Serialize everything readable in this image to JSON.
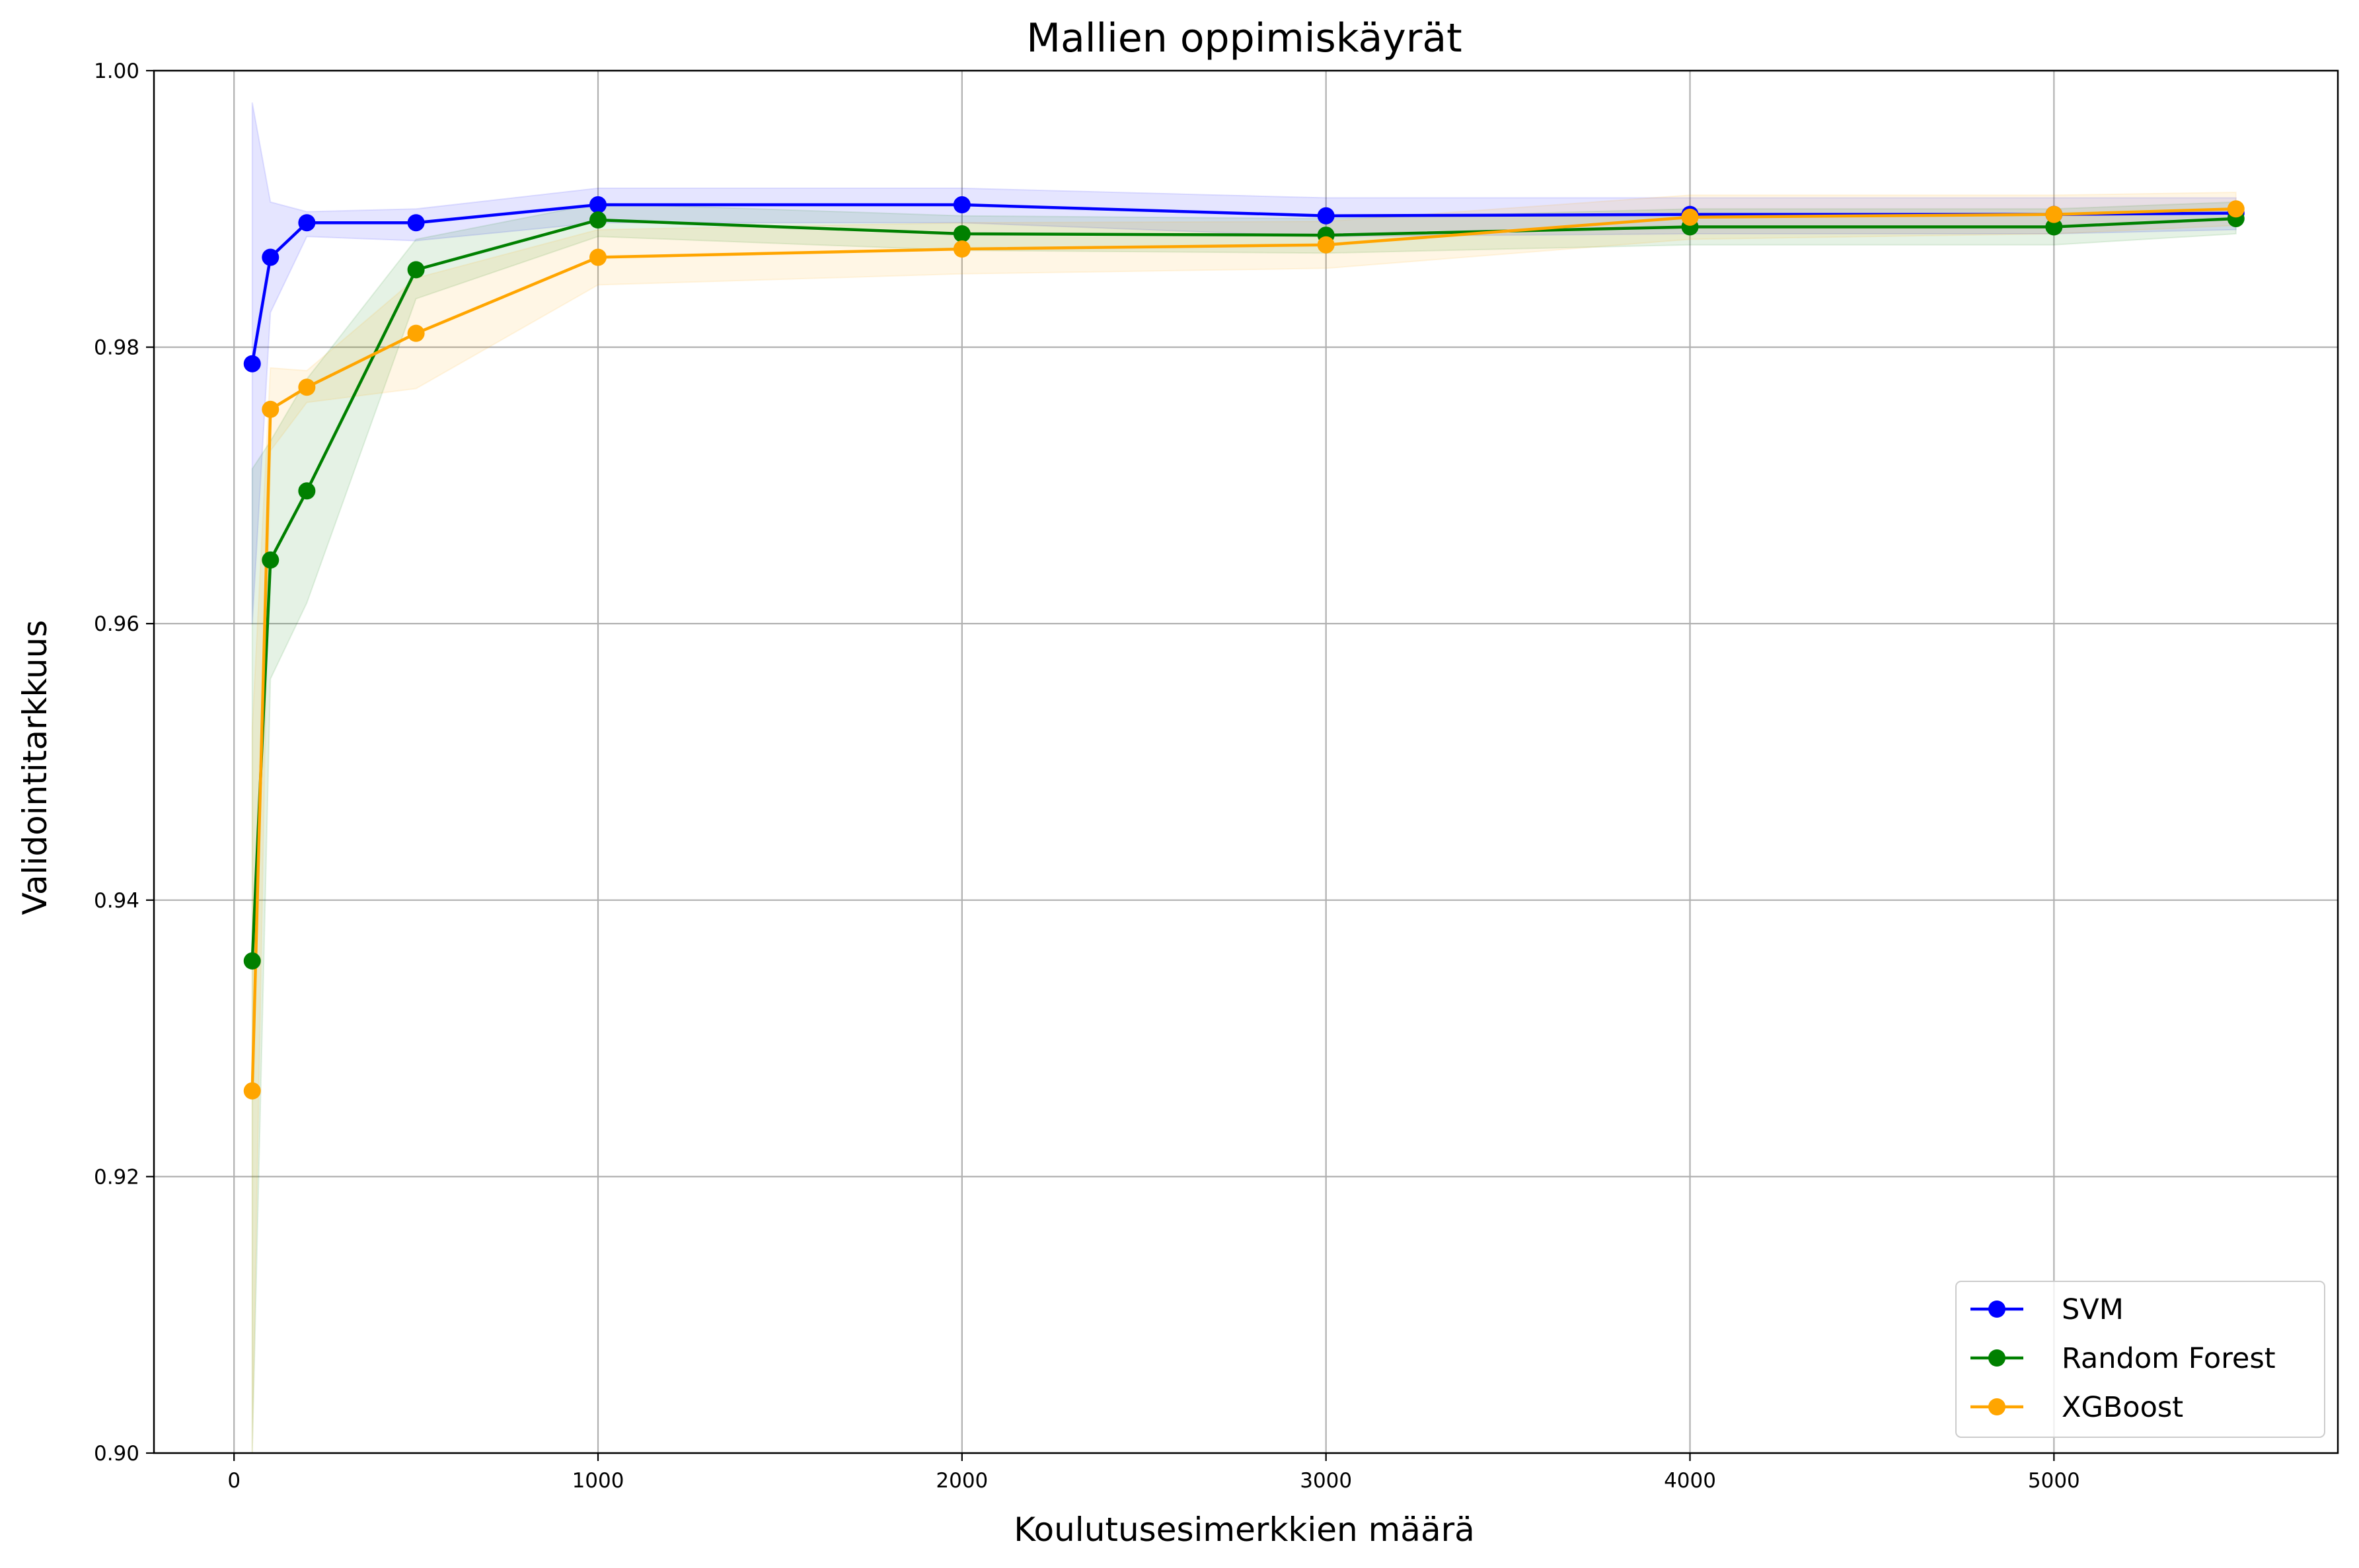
{
  "chart_data": {
    "type": "line",
    "title": "Mallien oppimiskäyrät",
    "xlabel": "Koulutusesimerkkien määrä",
    "ylabel": "Validointitarkkuus",
    "xlim": [
      -220,
      5780
    ],
    "ylim": [
      0.9,
      1.0
    ],
    "xticks": [
      0,
      1000,
      2000,
      3000,
      4000,
      5000
    ],
    "xtick_labels": [
      "0",
      "1000",
      "2000",
      "3000",
      "4000",
      "5000"
    ],
    "yticks": [
      0.9,
      0.92,
      0.94,
      0.96,
      0.98,
      1.0
    ],
    "ytick_labels": [
      "0.90",
      "0.92",
      "0.94",
      "0.96",
      "0.98",
      "1.00"
    ],
    "grid": true,
    "legend_position": "lower-right",
    "x": [
      50,
      100,
      200,
      500,
      1000,
      2000,
      3000,
      4000,
      5000,
      5500
    ],
    "series": [
      {
        "name": "SVM",
        "color": "#0000ff",
        "values": [
          0.9788,
          0.9865,
          0.989,
          0.989,
          0.9903,
          0.9903,
          0.9895,
          0.9896,
          0.9896,
          0.9897
        ],
        "band_lower": [
          0.96,
          0.9825,
          0.988,
          0.9877,
          0.989,
          0.989,
          0.988,
          0.9882,
          0.9882,
          0.9885
        ],
        "band_upper": [
          0.9977,
          0.9905,
          0.9898,
          0.99,
          0.9915,
          0.9915,
          0.9908,
          0.9908,
          0.9908,
          0.9908
        ]
      },
      {
        "name": "Random Forest",
        "color": "#008000",
        "values": [
          0.9356,
          0.9646,
          0.9696,
          0.9856,
          0.9892,
          0.9882,
          0.9881,
          0.9887,
          0.9887,
          0.9893
        ],
        "band_lower": [
          0.9,
          0.956,
          0.9615,
          0.9835,
          0.988,
          0.987,
          0.9868,
          0.9874,
          0.9874,
          0.9882
        ],
        "band_upper": [
          0.9712,
          0.9732,
          0.9777,
          0.9878,
          0.9904,
          0.9895,
          0.9893,
          0.99,
          0.99,
          0.9905
        ]
      },
      {
        "name": "XGBoost",
        "color": "#ffa500",
        "values": [
          0.9262,
          0.9755,
          0.9771,
          0.981,
          0.9865,
          0.9871,
          0.9874,
          0.9894,
          0.9896,
          0.99
        ],
        "band_lower": [
          0.9,
          0.9725,
          0.976,
          0.977,
          0.9845,
          0.9853,
          0.9857,
          0.9878,
          0.9882,
          0.9888
        ],
        "band_upper": [
          0.9524,
          0.9785,
          0.9783,
          0.985,
          0.9885,
          0.989,
          0.9891,
          0.991,
          0.991,
          0.9912
        ]
      }
    ]
  }
}
